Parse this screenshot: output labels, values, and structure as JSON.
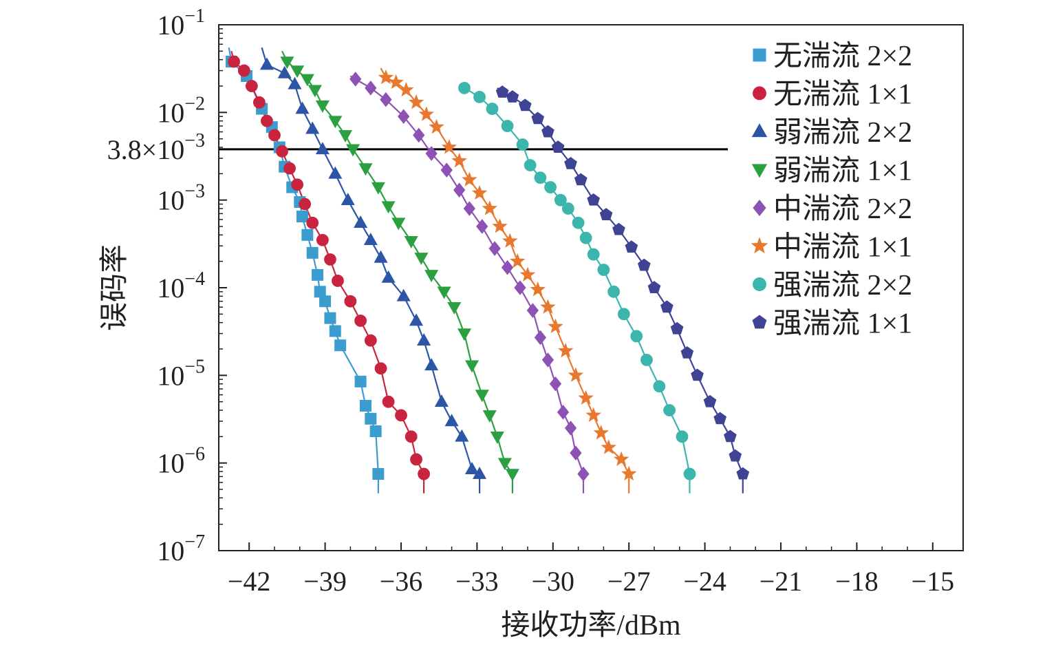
{
  "chart_data": {
    "type": "scatter",
    "title": "",
    "xlabel": "接收功率/dBm",
    "ylabel": "误码率",
    "xlim": [
      -43.2,
      -13.8
    ],
    "ylim": [
      1e-07,
      0.1
    ],
    "xscale": "linear",
    "yscale": "log",
    "x_ticks": [
      -42,
      -39,
      -36,
      -33,
      -30,
      -27,
      -24,
      -21,
      -18,
      -15
    ],
    "x_tick_labels": [
      "−42",
      "−39",
      "−36",
      "−33",
      "−30",
      "−27",
      "−24",
      "−21",
      "−18",
      "−15"
    ],
    "y_tick_labels": [
      {
        "mantissa": "10",
        "exp": "−1",
        "value": 0.1
      },
      {
        "mantissa": "10",
        "exp": "−2",
        "value": 0.01
      },
      {
        "mantissa": "10",
        "exp": "−3",
        "value": 0.001
      },
      {
        "mantissa": "10",
        "exp": "−4",
        "value": 0.0001
      },
      {
        "mantissa": "10",
        "exp": "−5",
        "value": 1e-05
      },
      {
        "mantissa": "10",
        "exp": "−6",
        "value": 1e-06
      },
      {
        "mantissa": "10",
        "exp": "−7",
        "value": 1e-07
      }
    ],
    "threshold": {
      "value": 0.0038,
      "label_mantissa": "3.8×10",
      "label_exp": "−3"
    },
    "grid": false,
    "legend_position": "top-right",
    "series": [
      {
        "name": "无湍流 2×2",
        "color": "#3b9ccf",
        "marker": "square",
        "x": [
          -42.7,
          -42.1,
          -41.5,
          -41.1,
          -40.8,
          -40.6,
          -40.3,
          -40.0,
          -39.9,
          -39.7,
          -39.5,
          -39.3,
          -39.2,
          -39.0,
          -38.8,
          -38.6,
          -38.4,
          -37.6,
          -37.4,
          -37.2,
          -37.0,
          -36.9
        ],
        "y": [
          0.038,
          0.026,
          0.011,
          0.0068,
          0.004,
          0.0024,
          0.0014,
          0.00095,
          0.00065,
          0.0004,
          0.00025,
          0.00014,
          9e-05,
          7e-05,
          4.5e-05,
          3.2e-05,
          2.2e-05,
          8.5e-06,
          4.5e-06,
          3.2e-06,
          2.3e-06,
          7.5e-07
        ],
        "fit_x": [
          -42.8,
          -36.9
        ],
        "fit_y": [
          0.055,
          4.5e-07
        ]
      },
      {
        "name": "无湍流 1×1",
        "color": "#c9243f",
        "marker": "circle",
        "x": [
          -42.6,
          -42.2,
          -41.9,
          -41.6,
          -41.3,
          -41.0,
          -40.7,
          -40.4,
          -40.1,
          -39.8,
          -39.5,
          -39.1,
          -38.8,
          -38.5,
          -38.0,
          -37.6,
          -37.2,
          -36.8,
          -36.5,
          -36.0,
          -35.6,
          -35.4,
          -35.1
        ],
        "y": [
          0.038,
          0.03,
          0.02,
          0.013,
          0.008,
          0.0055,
          0.0036,
          0.0023,
          0.0015,
          0.0009,
          0.00055,
          0.00035,
          0.00021,
          0.00012,
          7e-05,
          4.2e-05,
          2.5e-05,
          1.2e-05,
          5e-06,
          3.5e-06,
          2e-06,
          1.1e-06,
          7.5e-07
        ],
        "fit_x": [
          -42.7,
          -35.1
        ],
        "fit_y": [
          0.05,
          4.5e-07
        ]
      },
      {
        "name": "弱湍流 2×2",
        "color": "#2c55a6",
        "marker": "triangle-up",
        "x": [
          -41.3,
          -40.6,
          -40.2,
          -39.9,
          -39.5,
          -39.1,
          -38.6,
          -38.1,
          -37.6,
          -37.2,
          -36.8,
          -36.5,
          -35.9,
          -35.4,
          -35.1,
          -34.8,
          -34.4,
          -34.0,
          -33.6,
          -33.2,
          -32.9
        ],
        "y": [
          0.035,
          0.028,
          0.021,
          0.011,
          0.0065,
          0.0038,
          0.002,
          0.001,
          0.00055,
          0.00035,
          0.00022,
          0.00013,
          8e-05,
          4.2e-05,
          2.5e-05,
          1.3e-05,
          5e-06,
          3e-06,
          2e-06,
          8.5e-07,
          7.5e-07
        ],
        "fit_x": [
          -41.5,
          -32.9
        ],
        "fit_y": [
          0.055,
          4.5e-07
        ]
      },
      {
        "name": "弱湍流 1×1",
        "color": "#2aa040",
        "marker": "triangle-down",
        "x": [
          -40.5,
          -40.1,
          -39.7,
          -39.4,
          -39.1,
          -38.6,
          -38.2,
          -37.9,
          -37.4,
          -36.9,
          -36.5,
          -36.1,
          -35.6,
          -35.2,
          -34.8,
          -34.3,
          -33.9,
          -33.5,
          -33.2,
          -32.8,
          -32.5,
          -32.2,
          -31.9,
          -31.6
        ],
        "y": [
          0.038,
          0.03,
          0.024,
          0.018,
          0.012,
          0.008,
          0.0055,
          0.0038,
          0.0023,
          0.0014,
          0.00085,
          0.00055,
          0.00034,
          0.00022,
          0.00014,
          9e-05,
          6e-05,
          3e-05,
          1.3e-05,
          6e-06,
          3.5e-06,
          2e-06,
          1e-06,
          7.5e-07
        ],
        "fit_x": [
          -40.7,
          -31.6
        ],
        "fit_y": [
          0.05,
          4.5e-07
        ]
      },
      {
        "name": "中湍流 2×2",
        "color": "#8e52b5",
        "marker": "diamond",
        "x": [
          -37.8,
          -37.2,
          -36.6,
          -35.9,
          -35.3,
          -34.8,
          -34.2,
          -33.7,
          -33.3,
          -32.8,
          -32.3,
          -31.8,
          -31.3,
          -30.8,
          -30.5,
          -30.2,
          -29.9,
          -29.6,
          -29.3,
          -29.1,
          -28.8
        ],
        "y": [
          0.024,
          0.019,
          0.014,
          0.009,
          0.0055,
          0.0034,
          0.0022,
          0.0013,
          0.0008,
          0.0005,
          0.00028,
          0.00017,
          0.0001,
          5.5e-05,
          2.7e-05,
          1.5e-05,
          8e-06,
          3.8e-06,
          2.5e-06,
          1.3e-06,
          7.5e-07
        ],
        "fit_x": [
          -38.0,
          -28.8
        ],
        "fit_y": [
          0.026,
          4.5e-07
        ]
      },
      {
        "name": "中湍流 1×1",
        "color": "#e8782e",
        "marker": "star",
        "x": [
          -36.6,
          -36.2,
          -35.8,
          -35.4,
          -35.0,
          -34.6,
          -34.1,
          -33.7,
          -33.3,
          -32.9,
          -32.5,
          -32.1,
          -31.7,
          -31.4,
          -31.0,
          -30.6,
          -30.2,
          -29.9,
          -29.5,
          -29.1,
          -28.7,
          -28.4,
          -28.1,
          -27.8,
          -27.3,
          -27.0
        ],
        "y": [
          0.025,
          0.022,
          0.018,
          0.013,
          0.0095,
          0.0068,
          0.004,
          0.0028,
          0.0017,
          0.0012,
          0.0008,
          0.0005,
          0.00034,
          0.0002,
          0.00014,
          9.5e-05,
          6e-05,
          3.6e-05,
          1.9e-05,
          1e-05,
          5.5e-06,
          3.5e-06,
          2.2e-06,
          1.5e-06,
          1.1e-06,
          7.5e-07
        ],
        "fit_x": [
          -36.8,
          -27.0
        ],
        "fit_y": [
          0.032,
          4.5e-07
        ]
      },
      {
        "name": "强湍流 2×2",
        "color": "#3cb6ad",
        "marker": "circle",
        "x": [
          -33.5,
          -32.9,
          -32.4,
          -31.8,
          -31.2,
          -30.9,
          -30.5,
          -30.1,
          -29.7,
          -29.4,
          -29.0,
          -28.7,
          -28.4,
          -28.0,
          -27.6,
          -27.2,
          -26.7,
          -26.3,
          -25.8,
          -25.4,
          -24.9,
          -24.6
        ],
        "y": [
          0.019,
          0.015,
          0.011,
          0.007,
          0.0043,
          0.0025,
          0.0018,
          0.0014,
          0.001,
          0.0008,
          0.00055,
          0.00037,
          0.00024,
          0.00016,
          9e-05,
          5e-05,
          2.8e-05,
          1.5e-05,
          7.5e-06,
          4e-06,
          2e-06,
          7.5e-07
        ],
        "fit_x": [
          -33.6,
          -24.6
        ],
        "fit_y": [
          0.02,
          4.5e-07
        ]
      },
      {
        "name": "强湍流 1×1",
        "color": "#3f4394",
        "marker": "pentagon",
        "x": [
          -32.0,
          -31.6,
          -31.1,
          -30.6,
          -30.2,
          -29.8,
          -29.3,
          -28.9,
          -28.4,
          -27.9,
          -27.4,
          -26.9,
          -26.4,
          -26.0,
          -25.5,
          -25.1,
          -24.7,
          -24.3,
          -23.8,
          -23.4,
          -23.0,
          -22.8,
          -22.5
        ],
        "y": [
          0.017,
          0.015,
          0.012,
          0.0085,
          0.006,
          0.004,
          0.0026,
          0.0017,
          0.001,
          0.00068,
          0.00046,
          0.00029,
          0.00018,
          0.0001,
          6e-05,
          3.4e-05,
          1.8e-05,
          1e-05,
          5e-06,
          3.2e-06,
          2e-06,
          1.2e-06,
          7.5e-07
        ],
        "fit_x": [
          -32.2,
          -22.5
        ],
        "fit_y": [
          0.019,
          4.5e-07
        ]
      }
    ]
  }
}
